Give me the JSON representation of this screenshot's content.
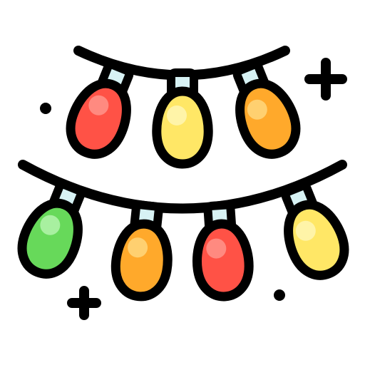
{
  "icon": {
    "name": "christmas-lights-icon",
    "outline_color": "#000000",
    "background_color": "#ffffff",
    "socket_color": "#d7f2f4",
    "bulb_colors": {
      "red": "#ff5246",
      "yellow": "#ffe766",
      "orange": "#ffa92b",
      "green": "#67d95a"
    },
    "highlight_colors": {
      "red": "#ff8a80",
      "yellow": "#fff4a8",
      "orange": "#ffd070",
      "green": "#a8f0a0"
    },
    "strings": [
      {
        "name": "top-string",
        "bulbs": [
          "red",
          "yellow",
          "orange"
        ]
      },
      {
        "name": "bottom-string",
        "bulbs": [
          "green",
          "orange",
          "red",
          "yellow"
        ]
      }
    ],
    "sparkles": [
      "plus-sparkle",
      "plus-sparkle",
      "dot-sparkle",
      "dot-sparkle"
    ]
  }
}
